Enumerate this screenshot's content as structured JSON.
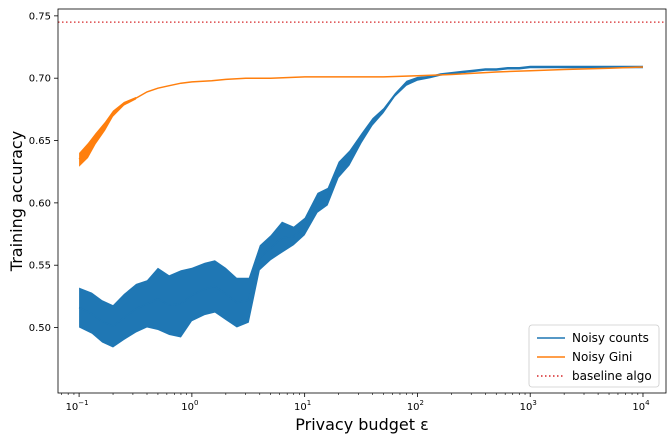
{
  "chart_data": {
    "type": "line",
    "xlabel": "Privacy budget ε",
    "ylabel": "Training accuracy",
    "xscale": "log",
    "xlim": [
      0.065,
      16000
    ],
    "ylim": [
      0.4475,
      0.7555
    ],
    "grid": false,
    "legend_position": "lower right",
    "x_ticks": [
      {
        "value": 0.1,
        "base": "10",
        "exp": "−1"
      },
      {
        "value": 1,
        "base": "10",
        "exp": "0"
      },
      {
        "value": 10,
        "base": "10",
        "exp": "1"
      },
      {
        "value": 100,
        "base": "10",
        "exp": "2"
      },
      {
        "value": 1000,
        "base": "10",
        "exp": "3"
      },
      {
        "value": 10000,
        "base": "10",
        "exp": "4"
      }
    ],
    "y_ticks": [
      "0.50",
      "0.55",
      "0.60",
      "0.65",
      "0.70",
      "0.75"
    ],
    "baseline": {
      "name": "baseline algo",
      "y": 0.745,
      "color": "#d62728",
      "style": "dotted"
    },
    "series": [
      {
        "name": "Noisy counts",
        "color": "#1f77b4",
        "style": "band",
        "x": [
          0.1,
          0.13,
          0.16,
          0.2,
          0.25,
          0.32,
          0.4,
          0.5,
          0.63,
          0.8,
          1,
          1.3,
          1.6,
          2,
          2.5,
          3.2,
          4,
          5,
          6.3,
          8,
          10,
          13,
          16,
          20,
          25,
          32,
          40,
          50,
          63,
          80,
          100,
          130,
          160,
          200,
          250,
          320,
          400,
          500,
          630,
          800,
          1000,
          2000,
          5000,
          10000
        ],
        "upper": [
          0.532,
          0.528,
          0.522,
          0.518,
          0.527,
          0.535,
          0.538,
          0.548,
          0.542,
          0.546,
          0.548,
          0.552,
          0.554,
          0.548,
          0.54,
          0.54,
          0.566,
          0.574,
          0.585,
          0.581,
          0.588,
          0.608,
          0.612,
          0.633,
          0.642,
          0.656,
          0.668,
          0.676,
          0.688,
          0.698,
          0.701,
          0.702,
          0.704,
          0.705,
          0.706,
          0.707,
          0.708,
          0.708,
          0.709,
          0.709,
          0.71,
          0.71,
          0.71,
          0.71
        ],
        "lower": [
          0.5,
          0.495,
          0.488,
          0.484,
          0.49,
          0.496,
          0.5,
          0.498,
          0.494,
          0.492,
          0.505,
          0.51,
          0.512,
          0.506,
          0.5,
          0.504,
          0.546,
          0.554,
          0.56,
          0.566,
          0.574,
          0.592,
          0.598,
          0.62,
          0.63,
          0.648,
          0.662,
          0.672,
          0.685,
          0.694,
          0.698,
          0.7,
          0.702,
          0.703,
          0.704,
          0.705,
          0.706,
          0.706,
          0.707,
          0.707,
          0.708,
          0.708,
          0.708,
          0.708
        ],
        "mean": [
          0.516,
          0.511,
          0.505,
          0.501,
          0.508,
          0.515,
          0.519,
          0.523,
          0.518,
          0.519,
          0.526,
          0.531,
          0.533,
          0.527,
          0.52,
          0.522,
          0.556,
          0.564,
          0.572,
          0.573,
          0.581,
          0.6,
          0.605,
          0.626,
          0.636,
          0.652,
          0.665,
          0.674,
          0.686,
          0.696,
          0.699,
          0.701,
          0.703,
          0.704,
          0.705,
          0.706,
          0.707,
          0.707,
          0.708,
          0.708,
          0.709,
          0.709,
          0.709,
          0.709
        ]
      },
      {
        "name": "Noisy Gini",
        "color": "#ff7f0e",
        "style": "line",
        "x": [
          0.1,
          0.12,
          0.14,
          0.17,
          0.2,
          0.25,
          0.32,
          0.4,
          0.5,
          0.63,
          0.8,
          1,
          1.5,
          2,
          3,
          5,
          10,
          20,
          50,
          100,
          200,
          500,
          1000,
          2000,
          5000,
          10000
        ],
        "values": [
          0.635,
          0.642,
          0.652,
          0.662,
          0.672,
          0.68,
          0.684,
          0.689,
          0.692,
          0.694,
          0.696,
          0.697,
          0.698,
          0.699,
          0.7,
          0.7,
          0.701,
          0.701,
          0.701,
          0.702,
          0.703,
          0.705,
          0.706,
          0.707,
          0.708,
          0.709
        ],
        "band_upper": [
          0.64,
          0.648,
          0.656,
          0.665,
          0.674,
          0.681,
          0.685
        ],
        "band_lower": [
          0.629,
          0.636,
          0.647,
          0.658,
          0.669,
          0.678,
          0.683
        ]
      }
    ],
    "legend": [
      "Noisy counts",
      "Noisy Gini",
      "baseline algo"
    ]
  }
}
